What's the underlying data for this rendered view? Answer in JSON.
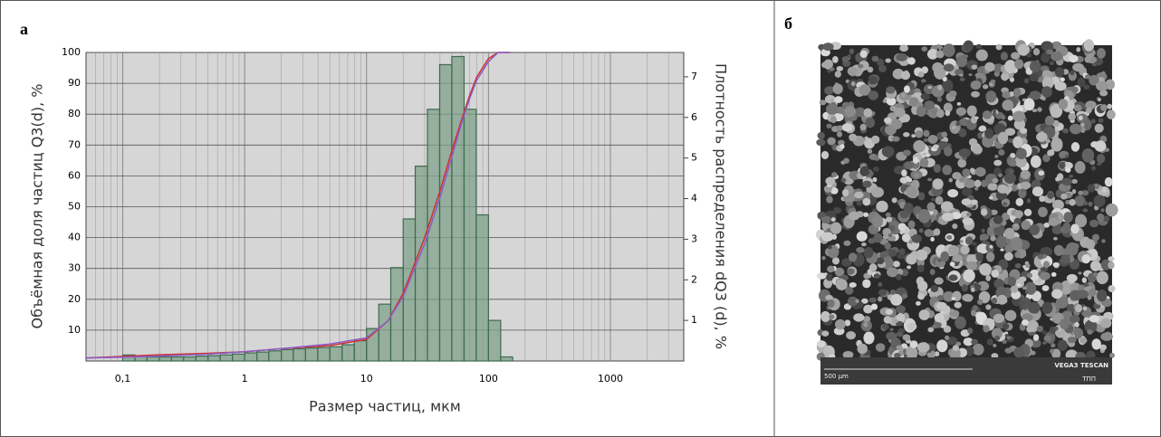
{
  "panel_labels": [
    "а",
    "б"
  ],
  "chart_data": {
    "type": "histogram",
    "xlabel": "Размер частиц, мкм",
    "ylabel": "Объёмная доля частиц Q3(d), %",
    "y2label": "Плотность распределения dQ3 (d), %",
    "xscale": "log",
    "grid": true,
    "background": "#d6d6d6",
    "xlim": [
      0.05,
      4000
    ],
    "xticks": [
      {
        "value": 0.1,
        "label": "0,1"
      },
      1,
      10,
      100,
      1000
    ],
    "ylim": [
      0,
      100
    ],
    "yticks": [
      10,
      20,
      30,
      40,
      50,
      60,
      70,
      80,
      90,
      100
    ],
    "y2lim": [
      0,
      7.6
    ],
    "y2ticks": [
      1,
      2,
      3,
      4,
      5,
      6,
      7
    ],
    "series": [
      {
        "type": "histogram",
        "axis": "y2",
        "color": "#7fa08a",
        "edge": "#3d6b4f",
        "bins": [
          0.1,
          0.126,
          0.158,
          0.2,
          0.251,
          0.316,
          0.398,
          0.501,
          0.631,
          0.794,
          1,
          1.26,
          1.58,
          2,
          2.51,
          3.16,
          3.98,
          5.01,
          6.31,
          7.94,
          10,
          12.6,
          15.8,
          20,
          25.1,
          31.6,
          39.8,
          50.1,
          63.1,
          79.4,
          100,
          126,
          158
        ],
        "values": [
          0.15,
          0.12,
          0.1,
          0.1,
          0.1,
          0.1,
          0.12,
          0.13,
          0.15,
          0.17,
          0.2,
          0.22,
          0.25,
          0.28,
          0.3,
          0.32,
          0.33,
          0.35,
          0.4,
          0.5,
          0.8,
          1.4,
          2.3,
          3.5,
          4.8,
          6.2,
          7.3,
          7.5,
          6.2,
          3.6,
          1.0,
          0.1
        ]
      },
      {
        "type": "line",
        "color": "#d03030",
        "x": [
          0.05,
          0.1,
          0.2,
          0.5,
          1,
          2,
          5,
          10,
          15,
          20,
          30,
          40,
          50,
          60,
          70,
          80,
          100,
          120,
          150
        ],
        "values": [
          1,
          1.5,
          2,
          2.5,
          3,
          4,
          5,
          7,
          13,
          22,
          40,
          55,
          68,
          78,
          86,
          92,
          98,
          100,
          100
        ]
      },
      {
        "type": "line",
        "color": "#8a5cc8",
        "x": [
          0.05,
          0.1,
          0.2,
          0.5,
          1,
          2,
          5,
          10,
          15,
          20,
          30,
          40,
          50,
          60,
          70,
          80,
          100,
          120,
          150
        ],
        "values": [
          1,
          1.2,
          1.6,
          2.2,
          3,
          4,
          5.5,
          7.5,
          13,
          21,
          38,
          53,
          66,
          77,
          85,
          91,
          97,
          100,
          100
        ]
      }
    ]
  },
  "image": {
    "scale_label": "500 µm",
    "instrument": "VEGA3 TESCAN",
    "logo": "ТПП"
  }
}
